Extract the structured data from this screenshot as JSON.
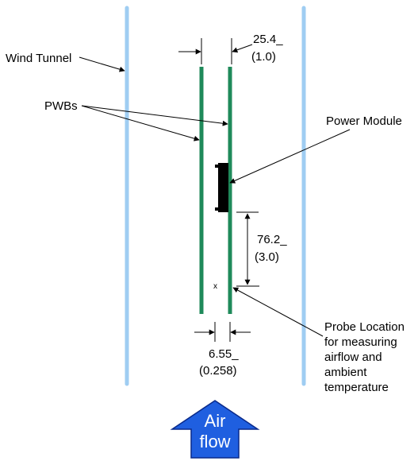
{
  "labels": {
    "wind_tunnel": "Wind Tunnel",
    "pwbs": "PWBs",
    "power_module": "Power Module",
    "dim_spacing_mm": "25.4_",
    "dim_spacing_in": "(1.0)",
    "dim_probe_mm": "76.2_",
    "dim_probe_in": "(3.0)",
    "dim_gap_mm": "6.55_",
    "dim_gap_in": "(0.258)",
    "probe_line1": "Probe Location",
    "probe_line2": "for measuring",
    "probe_line3": "airflow and",
    "probe_line4": "ambient",
    "probe_line5": "temperature",
    "probe_marker": "x",
    "air_line1": "Air",
    "air_line2": "flow"
  },
  "colors": {
    "wind_tunnel_wall": "#9fcdf2",
    "pwb": "#1f8a5a",
    "power_module": "#000000",
    "arrow_fill": "#1f5fe0",
    "arrow_stroke": "#0a2a8a",
    "line": "#000000"
  }
}
